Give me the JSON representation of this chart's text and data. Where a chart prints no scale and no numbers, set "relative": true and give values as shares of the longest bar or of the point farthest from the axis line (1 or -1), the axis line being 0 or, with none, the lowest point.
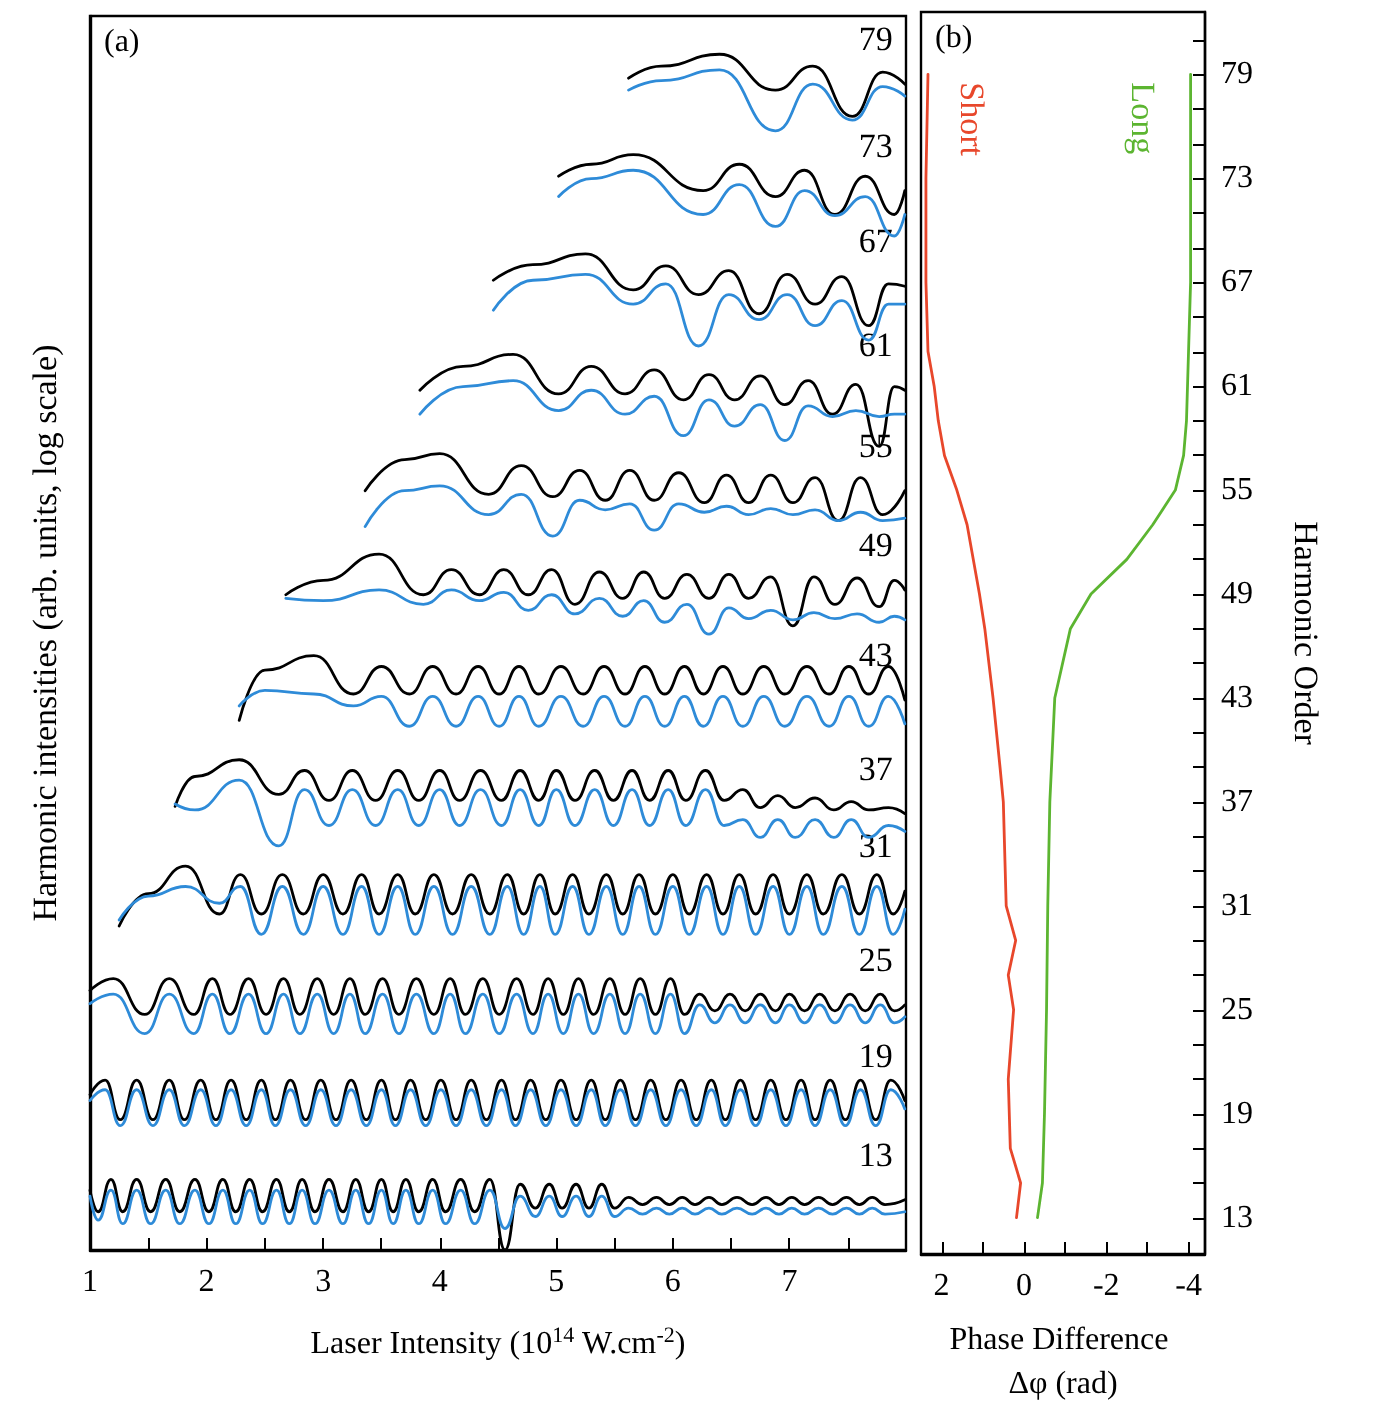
{
  "chart_data": [
    {
      "type": "line",
      "relative": true,
      "xlabel": "Laser Intensity (10$^{14}$ W.cm$^{-2}$)",
      "ylabel": "Harmonic intensities (arb. units, log scale)",
      "xlim": [
        1,
        8
      ],
      "xticks": [
        1,
        {
          "value": 1.5,
          "label": null
        },
        2,
        {
          "value": 2.5,
          "label": null
        },
        3,
        {
          "value": 3.5,
          "label": null
        },
        4,
        {
          "value": 4.5,
          "label": null
        },
        5,
        {
          "value": 5.5,
          "label": null
        },
        6,
        {
          "value": 6.5,
          "label": null
        },
        7,
        {
          "value": 7.5,
          "label": null
        }
      ],
      "marker": "none",
      "line_style": "solid",
      "grid": false,
      "annotations": [
        "(a)"
      ],
      "series": [
        {
          "name": "13",
          "color": "#000000",
          "x": [
            1.0,
            1.07,
            1.18,
            1.28,
            1.4,
            1.52,
            1.65,
            1.77,
            1.9,
            2.02,
            2.14,
            2.25,
            2.37,
            2.48,
            2.6,
            2.71,
            2.82,
            2.93,
            3.05,
            3.17,
            3.28,
            3.39,
            3.5,
            3.6,
            3.71,
            3.82,
            3.94,
            4.05,
            4.18,
            4.3,
            4.43,
            4.56,
            4.69,
            4.82,
            4.94,
            5.05,
            5.17,
            5.28,
            5.39,
            5.5,
            5.62,
            5.74,
            5.86,
            5.97,
            6.08,
            6.19,
            6.31,
            6.42,
            6.55,
            6.68,
            6.8,
            6.91,
            7.02,
            7.13,
            7.25,
            7.37,
            7.49,
            7.6,
            7.71,
            7.82,
            7.99
          ],
          "values": [
            0.05,
            0.032,
            0.059,
            0.032,
            0.059,
            0.032,
            0.059,
            0.032,
            0.059,
            0.032,
            0.059,
            0.032,
            0.059,
            0.032,
            0.059,
            0.032,
            0.059,
            0.032,
            0.059,
            0.032,
            0.059,
            0.032,
            0.059,
            0.032,
            0.059,
            0.032,
            0.059,
            0.032,
            0.059,
            0.032,
            0.059,
            0.0,
            0.055,
            0.035,
            0.055,
            0.035,
            0.055,
            0.035,
            0.055,
            0.035,
            0.044,
            0.038,
            0.044,
            0.038,
            0.044,
            0.038,
            0.044,
            0.038,
            0.044,
            0.038,
            0.044,
            0.038,
            0.044,
            0.038,
            0.044,
            0.038,
            0.044,
            0.038,
            0.044,
            0.038,
            0.042
          ]
        },
        {
          "color": "#2e8bd8",
          "x": [
            1.0,
            1.07,
            1.18,
            1.28,
            1.4,
            1.52,
            1.65,
            1.77,
            1.9,
            2.02,
            2.14,
            2.25,
            2.37,
            2.48,
            2.6,
            2.71,
            2.82,
            2.93,
            3.05,
            3.17,
            3.28,
            3.39,
            3.5,
            3.6,
            3.71,
            3.82,
            3.94,
            4.05,
            4.18,
            4.3,
            4.43,
            4.56,
            4.69,
            4.82,
            4.94,
            5.05,
            5.17,
            5.28,
            5.39,
            5.5,
            5.62,
            5.74,
            5.86,
            5.97,
            6.08,
            6.19,
            6.31,
            6.42,
            6.55,
            6.68,
            6.8,
            6.91,
            7.02,
            7.13,
            7.25,
            7.37,
            7.49,
            7.6,
            7.71,
            7.82,
            7.99
          ],
          "values": [
            0.045,
            0.025,
            0.05,
            0.022,
            0.05,
            0.022,
            0.05,
            0.022,
            0.05,
            0.022,
            0.05,
            0.022,
            0.05,
            0.022,
            0.05,
            0.022,
            0.05,
            0.022,
            0.05,
            0.022,
            0.05,
            0.022,
            0.05,
            0.022,
            0.05,
            0.022,
            0.05,
            0.022,
            0.05,
            0.022,
            0.05,
            0.018,
            0.045,
            0.028,
            0.045,
            0.028,
            0.045,
            0.028,
            0.045,
            0.028,
            0.035,
            0.03,
            0.035,
            0.03,
            0.035,
            0.03,
            0.035,
            0.03,
            0.035,
            0.03,
            0.035,
            0.03,
            0.035,
            0.03,
            0.035,
            0.03,
            0.035,
            0.03,
            0.035,
            0.03,
            0.032
          ]
        },
        {
          "name": "19",
          "color": "#000000",
          "x": [
            1.0,
            1.13,
            1.26,
            1.4,
            1.54,
            1.68,
            1.81,
            1.95,
            2.08,
            2.21,
            2.34,
            2.47,
            2.59,
            2.72,
            2.85,
            2.98,
            3.11,
            3.24,
            3.37,
            3.5,
            3.62,
            3.75,
            3.88,
            4.01,
            4.14,
            4.27,
            4.4,
            4.53,
            4.65,
            4.78,
            4.91,
            5.04,
            5.17,
            5.3,
            5.42,
            5.55,
            5.68,
            5.81,
            5.94,
            6.07,
            6.2,
            6.33,
            6.45,
            6.58,
            6.71,
            6.84,
            6.97,
            7.1,
            7.22,
            7.35,
            7.48,
            7.61,
            7.74,
            7.87,
            7.99
          ],
          "values": [
            0.13,
            0.142,
            0.109,
            0.142,
            0.109,
            0.142,
            0.109,
            0.142,
            0.109,
            0.142,
            0.109,
            0.142,
            0.109,
            0.142,
            0.109,
            0.142,
            0.109,
            0.142,
            0.109,
            0.142,
            0.109,
            0.142,
            0.109,
            0.142,
            0.109,
            0.142,
            0.109,
            0.142,
            0.109,
            0.142,
            0.109,
            0.142,
            0.109,
            0.142,
            0.109,
            0.142,
            0.109,
            0.142,
            0.109,
            0.142,
            0.109,
            0.142,
            0.109,
            0.142,
            0.109,
            0.142,
            0.109,
            0.142,
            0.109,
            0.142,
            0.109,
            0.142,
            0.109,
            0.142,
            0.125
          ]
        },
        {
          "color": "#2e8bd8",
          "x": [
            1.0,
            1.13,
            1.26,
            1.4,
            1.54,
            1.68,
            1.81,
            1.95,
            2.08,
            2.21,
            2.34,
            2.47,
            2.59,
            2.72,
            2.85,
            2.98,
            3.11,
            3.24,
            3.37,
            3.5,
            3.62,
            3.75,
            3.88,
            4.01,
            4.14,
            4.27,
            4.4,
            4.53,
            4.65,
            4.78,
            4.91,
            5.04,
            5.17,
            5.3,
            5.42,
            5.55,
            5.68,
            5.81,
            5.94,
            6.07,
            6.2,
            6.33,
            6.45,
            6.58,
            6.71,
            6.84,
            6.97,
            7.1,
            7.22,
            7.35,
            7.48,
            7.61,
            7.74,
            7.87,
            7.99
          ],
          "values": [
            0.125,
            0.134,
            0.104,
            0.134,
            0.104,
            0.134,
            0.104,
            0.134,
            0.104,
            0.134,
            0.104,
            0.134,
            0.104,
            0.134,
            0.104,
            0.134,
            0.104,
            0.134,
            0.104,
            0.134,
            0.104,
            0.134,
            0.104,
            0.134,
            0.104,
            0.134,
            0.104,
            0.134,
            0.104,
            0.134,
            0.104,
            0.134,
            0.104,
            0.134,
            0.104,
            0.134,
            0.104,
            0.134,
            0.104,
            0.134,
            0.104,
            0.134,
            0.104,
            0.134,
            0.104,
            0.134,
            0.104,
            0.134,
            0.104,
            0.134,
            0.104,
            0.134,
            0.104,
            0.134,
            0.118
          ]
        },
        {
          "name": "25",
          "color": "#000000",
          "x": [
            1.0,
            1.2,
            1.47,
            1.68,
            1.89,
            2.05,
            2.2,
            2.36,
            2.51,
            2.66,
            2.8,
            2.95,
            3.09,
            3.23,
            3.36,
            3.51,
            3.65,
            3.8,
            3.95,
            4.09,
            4.22,
            4.37,
            4.51,
            4.66,
            4.8,
            4.93,
            5.06,
            5.19,
            5.32,
            5.46,
            5.59,
            5.72,
            5.85,
            5.98,
            6.1,
            6.23,
            6.36,
            6.49,
            6.62,
            6.75,
            6.88,
            7.0,
            7.13,
            7.26,
            7.39,
            7.52,
            7.65,
            7.78,
            7.9,
            7.99
          ],
          "values": [
            0.217,
            0.227,
            0.197,
            0.227,
            0.197,
            0.227,
            0.197,
            0.227,
            0.197,
            0.227,
            0.197,
            0.227,
            0.197,
            0.227,
            0.197,
            0.227,
            0.197,
            0.227,
            0.197,
            0.227,
            0.197,
            0.227,
            0.197,
            0.227,
            0.197,
            0.227,
            0.197,
            0.227,
            0.197,
            0.227,
            0.197,
            0.227,
            0.197,
            0.227,
            0.197,
            0.214,
            0.2,
            0.214,
            0.2,
            0.214,
            0.2,
            0.214,
            0.2,
            0.214,
            0.2,
            0.214,
            0.2,
            0.214,
            0.2,
            0.205
          ]
        },
        {
          "color": "#2e8bd8",
          "x": [
            1.0,
            1.2,
            1.47,
            1.68,
            1.89,
            2.05,
            2.2,
            2.36,
            2.51,
            2.66,
            2.8,
            2.95,
            3.09,
            3.23,
            3.36,
            3.51,
            3.65,
            3.8,
            3.95,
            4.09,
            4.22,
            4.37,
            4.51,
            4.66,
            4.8,
            4.93,
            5.06,
            5.19,
            5.32,
            5.46,
            5.59,
            5.72,
            5.85,
            5.98,
            6.1,
            6.23,
            6.36,
            6.49,
            6.62,
            6.75,
            6.88,
            7.0,
            7.13,
            7.26,
            7.39,
            7.52,
            7.65,
            7.78,
            7.9,
            7.99
          ],
          "values": [
            0.206,
            0.214,
            0.181,
            0.214,
            0.181,
            0.214,
            0.181,
            0.214,
            0.181,
            0.214,
            0.181,
            0.214,
            0.181,
            0.214,
            0.181,
            0.214,
            0.181,
            0.214,
            0.181,
            0.214,
            0.181,
            0.214,
            0.181,
            0.214,
            0.181,
            0.214,
            0.181,
            0.214,
            0.181,
            0.214,
            0.181,
            0.214,
            0.181,
            0.214,
            0.181,
            0.205,
            0.19,
            0.205,
            0.19,
            0.205,
            0.19,
            0.205,
            0.19,
            0.205,
            0.19,
            0.205,
            0.19,
            0.205,
            0.19,
            0.195
          ]
        },
        {
          "name": "31",
          "color": "#000000",
          "x": [
            1.25,
            1.5,
            1.82,
            2.11,
            2.29,
            2.47,
            2.65,
            2.83,
            3.0,
            3.17,
            3.33,
            3.48,
            3.64,
            3.79,
            3.95,
            4.11,
            4.27,
            4.43,
            4.58,
            4.72,
            4.86,
            4.99,
            5.14,
            5.28,
            5.43,
            5.57,
            5.71,
            5.85,
            6.0,
            6.14,
            6.29,
            6.43,
            6.57,
            6.71,
            6.86,
            7.0,
            7.15,
            7.29,
            7.45,
            7.6,
            7.75,
            7.89,
            7.99
          ],
          "values": [
            0.271,
            0.298,
            0.321,
            0.281,
            0.314,
            0.281,
            0.314,
            0.281,
            0.314,
            0.281,
            0.314,
            0.281,
            0.314,
            0.281,
            0.314,
            0.281,
            0.314,
            0.281,
            0.314,
            0.281,
            0.314,
            0.281,
            0.314,
            0.281,
            0.314,
            0.281,
            0.314,
            0.281,
            0.314,
            0.281,
            0.314,
            0.281,
            0.314,
            0.281,
            0.314,
            0.281,
            0.314,
            0.281,
            0.314,
            0.281,
            0.314,
            0.281,
            0.3
          ]
        },
        {
          "color": "#2e8bd8",
          "x": [
            1.25,
            1.5,
            1.82,
            2.11,
            2.29,
            2.47,
            2.65,
            2.83,
            3.0,
            3.17,
            3.33,
            3.48,
            3.64,
            3.79,
            3.95,
            4.11,
            4.27,
            4.43,
            4.58,
            4.72,
            4.86,
            4.99,
            5.14,
            5.28,
            5.43,
            5.57,
            5.71,
            5.85,
            6.0,
            6.14,
            6.29,
            6.43,
            6.57,
            6.71,
            6.86,
            7.0,
            7.15,
            7.29,
            7.45,
            7.6,
            7.75,
            7.89,
            7.99
          ],
          "values": [
            0.276,
            0.296,
            0.304,
            0.29,
            0.304,
            0.264,
            0.304,
            0.264,
            0.304,
            0.264,
            0.304,
            0.264,
            0.304,
            0.264,
            0.304,
            0.264,
            0.304,
            0.264,
            0.304,
            0.264,
            0.304,
            0.264,
            0.304,
            0.264,
            0.304,
            0.264,
            0.304,
            0.264,
            0.304,
            0.264,
            0.304,
            0.264,
            0.304,
            0.264,
            0.304,
            0.264,
            0.304,
            0.264,
            0.304,
            0.264,
            0.304,
            0.264,
            0.285
          ]
        },
        {
          "name": "37",
          "color": "#000000",
          "x": [
            1.73,
            1.9,
            2.28,
            2.62,
            2.84,
            3.05,
            3.25,
            3.45,
            3.64,
            3.82,
            4.0,
            4.17,
            4.35,
            4.53,
            4.69,
            4.85,
            5.0,
            5.16,
            5.33,
            5.49,
            5.65,
            5.8,
            5.96,
            6.11,
            6.28,
            6.44,
            6.6,
            6.75,
            6.9,
            7.05,
            7.22,
            7.38,
            7.53,
            7.68,
            7.85,
            7.99
          ],
          "values": [
            0.371,
            0.396,
            0.41,
            0.381,
            0.401,
            0.376,
            0.401,
            0.376,
            0.401,
            0.376,
            0.401,
            0.376,
            0.401,
            0.376,
            0.401,
            0.376,
            0.401,
            0.376,
            0.401,
            0.376,
            0.401,
            0.376,
            0.401,
            0.376,
            0.401,
            0.376,
            0.385,
            0.37,
            0.38,
            0.37,
            0.378,
            0.368,
            0.375,
            0.368,
            0.37,
            0.365
          ]
        },
        {
          "color": "#2e8bd8",
          "x": [
            1.73,
            1.9,
            2.28,
            2.62,
            2.84,
            3.05,
            3.25,
            3.45,
            3.64,
            3.82,
            4.0,
            4.17,
            4.35,
            4.53,
            4.69,
            4.85,
            5.0,
            5.16,
            5.33,
            5.49,
            5.65,
            5.8,
            5.96,
            6.11,
            6.28,
            6.44,
            6.6,
            6.75,
            6.9,
            7.05,
            7.22,
            7.38,
            7.53,
            7.68,
            7.85,
            7.99
          ],
          "values": [
            0.373,
            0.368,
            0.393,
            0.338,
            0.385,
            0.355,
            0.385,
            0.355,
            0.385,
            0.355,
            0.385,
            0.355,
            0.385,
            0.355,
            0.385,
            0.355,
            0.385,
            0.355,
            0.385,
            0.355,
            0.385,
            0.355,
            0.385,
            0.355,
            0.385,
            0.355,
            0.36,
            0.345,
            0.36,
            0.345,
            0.36,
            0.345,
            0.36,
            0.345,
            0.355,
            0.35
          ]
        },
        {
          "name": "43",
          "color": "#000000",
          "x": [
            2.28,
            2.5,
            2.92,
            3.26,
            3.5,
            3.74,
            3.94,
            4.14,
            4.33,
            4.51,
            4.68,
            4.85,
            5.04,
            5.23,
            5.41,
            5.59,
            5.76,
            5.93,
            6.1,
            6.26,
            6.43,
            6.6,
            6.78,
            6.96,
            7.15,
            7.34,
            7.51,
            7.68,
            7.85,
            7.99
          ],
          "values": [
            0.443,
            0.485,
            0.497,
            0.465,
            0.488,
            0.465,
            0.488,
            0.465,
            0.488,
            0.465,
            0.488,
            0.465,
            0.488,
            0.465,
            0.488,
            0.465,
            0.488,
            0.465,
            0.488,
            0.465,
            0.488,
            0.465,
            0.488,
            0.465,
            0.488,
            0.465,
            0.488,
            0.465,
            0.488,
            0.46
          ]
        },
        {
          "color": "#2e8bd8",
          "x": [
            2.28,
            2.5,
            2.92,
            3.26,
            3.5,
            3.74,
            3.94,
            4.14,
            4.33,
            4.51,
            4.68,
            4.85,
            5.04,
            5.23,
            5.41,
            5.59,
            5.76,
            5.93,
            6.1,
            6.26,
            6.43,
            6.6,
            6.78,
            6.96,
            7.15,
            7.34,
            7.51,
            7.68,
            7.85,
            7.99
          ],
          "values": [
            0.455,
            0.468,
            0.465,
            0.455,
            0.463,
            0.438,
            0.463,
            0.438,
            0.463,
            0.438,
            0.463,
            0.438,
            0.463,
            0.438,
            0.463,
            0.438,
            0.463,
            0.438,
            0.463,
            0.438,
            0.463,
            0.438,
            0.463,
            0.438,
            0.463,
            0.438,
            0.463,
            0.438,
            0.463,
            0.44
          ]
        },
        {
          "name": "49",
          "color": "#000000",
          "x": [
            2.68,
            3.0,
            3.48,
            3.86,
            4.1,
            4.34,
            4.55,
            4.76,
            4.96,
            5.16,
            5.37,
            5.57,
            5.75,
            5.93,
            6.12,
            6.31,
            6.48,
            6.65,
            6.84,
            7.03,
            7.21,
            7.39,
            7.58,
            7.77,
            7.9,
            7.99
          ],
          "values": [
            0.548,
            0.56,
            0.582,
            0.548,
            0.569,
            0.548,
            0.569,
            0.548,
            0.569,
            0.54,
            0.567,
            0.545,
            0.567,
            0.545,
            0.565,
            0.545,
            0.565,
            0.545,
            0.563,
            0.522,
            0.563,
            0.54,
            0.562,
            0.538,
            0.56,
            0.552
          ]
        },
        {
          "color": "#2e8bd8",
          "x": [
            2.68,
            3.0,
            3.48,
            3.86,
            4.1,
            4.34,
            4.55,
            4.76,
            4.96,
            5.16,
            5.37,
            5.57,
            5.75,
            5.93,
            6.12,
            6.31,
            6.48,
            6.65,
            6.84,
            7.03,
            7.21,
            7.39,
            7.58,
            7.77,
            7.9,
            7.99
          ],
          "values": [
            0.545,
            0.543,
            0.552,
            0.54,
            0.552,
            0.543,
            0.55,
            0.535,
            0.548,
            0.532,
            0.545,
            0.53,
            0.543,
            0.525,
            0.54,
            0.515,
            0.537,
            0.528,
            0.535,
            0.527,
            0.533,
            0.528,
            0.532,
            0.525,
            0.53,
            0.527
          ]
        },
        {
          "name": "55",
          "color": "#000000",
          "x": [
            3.36,
            3.7,
            4.0,
            4.42,
            4.7,
            4.97,
            5.2,
            5.42,
            5.63,
            5.84,
            6.05,
            6.27,
            6.46,
            6.65,
            6.84,
            7.03,
            7.22,
            7.42,
            7.61,
            7.8,
            7.99
          ],
          "values": [
            0.635,
            0.661,
            0.666,
            0.632,
            0.656,
            0.63,
            0.652,
            0.627,
            0.652,
            0.627,
            0.65,
            0.625,
            0.648,
            0.625,
            0.648,
            0.625,
            0.646,
            0.61,
            0.646,
            0.615,
            0.635
          ]
        },
        {
          "color": "#2e8bd8",
          "x": [
            3.36,
            3.7,
            4.0,
            4.42,
            4.7,
            4.97,
            5.2,
            5.42,
            5.63,
            5.84,
            6.05,
            6.27,
            6.46,
            6.65,
            6.84,
            7.03,
            7.22,
            7.42,
            7.61,
            7.8,
            7.99
          ],
          "values": [
            0.605,
            0.635,
            0.639,
            0.615,
            0.632,
            0.597,
            0.627,
            0.619,
            0.624,
            0.602,
            0.624,
            0.617,
            0.622,
            0.615,
            0.62,
            0.615,
            0.619,
            0.61,
            0.617,
            0.61,
            0.612
          ]
        },
        {
          "name": "61",
          "color": "#000000",
          "x": [
            3.83,
            4.2,
            4.63,
            5.02,
            5.3,
            5.59,
            5.84,
            6.09,
            6.31,
            6.53,
            6.75,
            6.96,
            7.16,
            7.37,
            7.57,
            7.77,
            7.9,
            7.99
          ],
          "values": [
            0.719,
            0.739,
            0.749,
            0.716,
            0.739,
            0.716,
            0.736,
            0.711,
            0.732,
            0.711,
            0.731,
            0.707,
            0.727,
            0.699,
            0.724,
            0.672,
            0.722,
            0.719
          ]
        },
        {
          "color": "#2e8bd8",
          "x": [
            3.83,
            4.2,
            4.63,
            5.02,
            5.3,
            5.59,
            5.84,
            6.09,
            6.31,
            6.53,
            6.75,
            6.96,
            7.16,
            7.37,
            7.57,
            7.77,
            7.9,
            7.99
          ],
          "values": [
            0.699,
            0.722,
            0.727,
            0.702,
            0.719,
            0.699,
            0.714,
            0.681,
            0.711,
            0.689,
            0.707,
            0.677,
            0.706,
            0.697,
            0.702,
            0.697,
            0.699,
            0.699
          ]
        },
        {
          "name": "67",
          "color": "#000000",
          "x": [
            4.46,
            4.8,
            5.25,
            5.66,
            5.94,
            6.22,
            6.48,
            6.74,
            6.98,
            7.22,
            7.45,
            7.68,
            7.85,
            7.99
          ],
          "values": [
            0.811,
            0.824,
            0.833,
            0.803,
            0.823,
            0.799,
            0.819,
            0.783,
            0.816,
            0.791,
            0.814,
            0.773,
            0.808,
            0.806
          ]
        },
        {
          "color": "#2e8bd8",
          "x": [
            4.46,
            4.8,
            5.25,
            5.66,
            5.94,
            6.22,
            6.48,
            6.74,
            6.98,
            7.22,
            7.45,
            7.68,
            7.85,
            7.99
          ],
          "values": [
            0.786,
            0.811,
            0.816,
            0.791,
            0.808,
            0.756,
            0.799,
            0.778,
            0.799,
            0.773,
            0.794,
            0.761,
            0.791,
            0.791
          ]
        },
        {
          "name": "73",
          "color": "#000000",
          "x": [
            5.02,
            5.3,
            5.66,
            6.26,
            6.57,
            6.88,
            7.13,
            7.39,
            7.65,
            7.9,
            7.99
          ],
          "values": [
            0.898,
            0.908,
            0.916,
            0.886,
            0.908,
            0.881,
            0.903,
            0.866,
            0.898,
            0.866,
            0.886
          ]
        },
        {
          "color": "#2e8bd8",
          "x": [
            5.02,
            5.3,
            5.66,
            6.26,
            6.57,
            6.88,
            7.13,
            7.39,
            7.65,
            7.9,
            7.99
          ],
          "values": [
            0.881,
            0.896,
            0.903,
            0.866,
            0.891,
            0.856,
            0.886,
            0.865,
            0.881,
            0.848,
            0.866
          ]
        },
        {
          "name": "79",
          "color": "#000000",
          "x": [
            5.62,
            5.9,
            6.4,
            6.88,
            7.2,
            7.54,
            7.8,
            7.99
          ],
          "values": [
            0.98,
            0.99,
            1.0,
            0.97,
            0.99,
            0.948,
            0.985,
            0.975
          ]
        },
        {
          "color": "#2e8bd8",
          "x": [
            5.62,
            5.9,
            6.4,
            6.88,
            7.2,
            7.54,
            7.8,
            7.99
          ],
          "values": [
            0.97,
            0.978,
            0.987,
            0.936,
            0.975,
            0.945,
            0.973,
            0.965
          ]
        }
      ]
    },
    {
      "type": "line",
      "xlabel": "Phase Difference Δφ (rad)",
      "ylabel": "Harmonic Order",
      "xlim": [
        2.5,
        -4.4
      ],
      "xticks": [
        2,
        {
          "value": 1,
          "label": null
        },
        0,
        {
          "value": -1,
          "label": null
        },
        -2,
        {
          "value": -3,
          "label": null
        },
        -4
      ],
      "ylim": [
        10.9,
        82.6
      ],
      "yticks": [
        13,
        {
          "value": 15,
          "label": null
        },
        {
          "value": 17,
          "label": null
        },
        19,
        {
          "value": 21,
          "label": null
        },
        {
          "value": 23,
          "label": null
        },
        25,
        {
          "value": 27,
          "label": null
        },
        {
          "value": 29,
          "label": null
        },
        31,
        {
          "value": 33,
          "label": null
        },
        {
          "value": 35,
          "label": null
        },
        37,
        {
          "value": 39,
          "label": null
        },
        {
          "value": 41,
          "label": null
        },
        43,
        {
          "value": 45,
          "label": null
        },
        {
          "value": 47,
          "label": null
        },
        49,
        {
          "value": 51,
          "label": null
        },
        {
          "value": 53,
          "label": null
        },
        55,
        {
          "value": 57,
          "label": null
        },
        {
          "value": 59,
          "label": null
        },
        61,
        {
          "value": 63,
          "label": null
        },
        {
          "value": 65,
          "label": null
        },
        67,
        {
          "value": 69,
          "label": null
        },
        {
          "value": 71,
          "label": null
        },
        73,
        {
          "value": 75,
          "label": null
        },
        {
          "value": 77,
          "label": null
        },
        79,
        {
          "value": 81,
          "label": null
        }
      ],
      "marker": "none",
      "line_style": "solid",
      "grid": false,
      "annotations": [
        "(b)"
      ],
      "series": [
        {
          "name": "Short",
          "color": "#e8472b",
          "x": [
            0.18,
            0.08,
            0.33,
            0.38,
            0.25,
            0.38,
            0.2,
            0.43,
            0.5,
            0.58,
            0.75,
            0.95,
            1.08,
            1.38,
            1.63,
            1.93,
            2.08,
            2.18,
            2.33,
            2.38,
            2.38,
            2.33
          ],
          "values": [
            13,
            15,
            17,
            21,
            25,
            27,
            29,
            31,
            37,
            39,
            43,
            47,
            49,
            53,
            55,
            57,
            59,
            61,
            63,
            67,
            73,
            79
          ]
        },
        {
          "name": "Long",
          "color": "#5cb531",
          "x": [
            -0.33,
            -0.45,
            -0.5,
            -0.55,
            -0.58,
            -0.63,
            -0.75,
            -1.13,
            -1.63,
            -2.5,
            -3.13,
            -3.68,
            -3.88,
            -3.95,
            -4.0,
            -4.05,
            -4.05
          ],
          "values": [
            13,
            15,
            19,
            25,
            31,
            37,
            43,
            47,
            49,
            51,
            53,
            55,
            57,
            59,
            63,
            67,
            79
          ]
        }
      ]
    }
  ]
}
